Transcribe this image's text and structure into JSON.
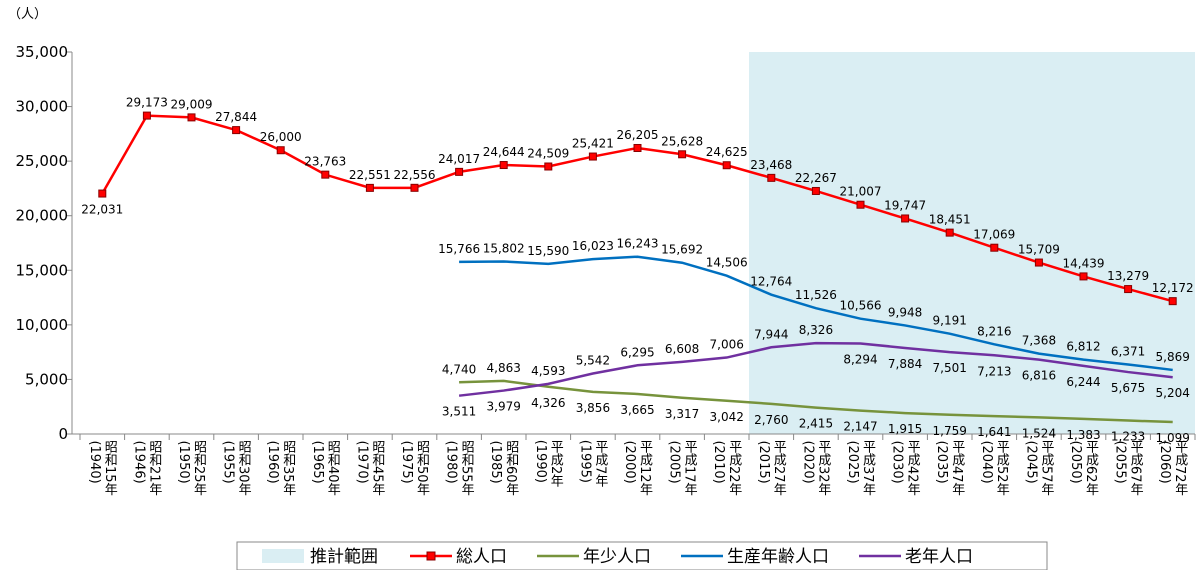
{
  "chart_data": {
    "type": "line",
    "y_unit": "（人）",
    "categories": [
      "昭和15年 (1940)",
      "昭和21年 (1946)",
      "昭和25年 (1950)",
      "昭和30年 (1955)",
      "昭和35年 (1960)",
      "昭和40年 (1965)",
      "昭和45年 (1970)",
      "昭和50年 (1975)",
      "昭和55年 (1980)",
      "昭和60年 (1985)",
      "平成2年 (1990)",
      "平成7年 (1995)",
      "平成12年 (2000)",
      "平成17年 (2005)",
      "平成22年 (2010)",
      "平成27年 (2015)",
      "平成32年 (2020)",
      "平成37年 (2025)",
      "平成42年 (2030)",
      "平成47年 (2035)",
      "平成52年 (2040)",
      "平成57年 (2045)",
      "平成62年 (2050)",
      "平成67年 (2055)",
      "平成72年 (2060)"
    ],
    "forecast": {
      "name": "推計範囲",
      "color": "#daeef3",
      "from": "平成27年 (2015)"
    },
    "series": [
      {
        "name": "総人口",
        "color": "#ff0000",
        "marker": "square",
        "values": [
          22031,
          29173,
          29009,
          27844,
          26000,
          23763,
          22551,
          22556,
          24017,
          24644,
          24509,
          25421,
          26205,
          25628,
          24625,
          23468,
          22267,
          21007,
          19747,
          18451,
          17069,
          15709,
          14439,
          13279,
          12172
        ],
        "value_labels": [
          "22,031",
          "29,173",
          "29,009",
          "27,844",
          "26,000",
          "23,763",
          "22,551",
          "22,556",
          "24,017",
          "24,644",
          "24,509",
          "25,421",
          "26,205",
          "25,628",
          "24,625",
          "23,468",
          "22,267",
          "21,007",
          "19,747",
          "18,451",
          "17,069",
          "15,709",
          "14,439",
          "13,279",
          "12,172"
        ]
      },
      {
        "name": "年少人口",
        "color": "#77933c",
        "values": [
          null,
          null,
          null,
          null,
          null,
          null,
          null,
          null,
          4740,
          4863,
          4326,
          3856,
          3665,
          3317,
          3042,
          2760,
          2415,
          2147,
          1915,
          1759,
          1641,
          1524,
          1383,
          1233,
          1099
        ],
        "value_labels": [
          null,
          null,
          null,
          null,
          null,
          null,
          null,
          null,
          "4,740",
          "4,863",
          "4,326",
          "3,856",
          "3,665",
          "3,317",
          "3,042",
          "2,760",
          "2,415",
          "2,147",
          "1,915",
          "1,759",
          "1,641",
          "1,524",
          "1,383",
          "1,233",
          "1,099"
        ]
      },
      {
        "name": "生産年齢人口",
        "color": "#0070c0",
        "values": [
          null,
          null,
          null,
          null,
          null,
          null,
          null,
          null,
          15766,
          15802,
          15590,
          16023,
          16243,
          15692,
          14506,
          12764,
          11526,
          10566,
          9948,
          9191,
          8216,
          7368,
          6812,
          6371,
          5869
        ],
        "value_labels": [
          null,
          null,
          null,
          null,
          null,
          null,
          null,
          null,
          "15,766",
          "15,802",
          "15,590",
          "16,023",
          "16,243",
          "15,692",
          "14,506",
          "12,764",
          "11,526",
          "10,566",
          "9,948",
          "9,191",
          "8,216",
          "7,368",
          "6,812",
          "6,371",
          "5,869"
        ]
      },
      {
        "name": "老年人口",
        "color": "#7030a0",
        "values": [
          null,
          null,
          null,
          null,
          null,
          null,
          null,
          null,
          3511,
          3979,
          4593,
          5542,
          6295,
          6608,
          7006,
          7944,
          8326,
          8294,
          7884,
          7501,
          7213,
          6816,
          6244,
          5675,
          5204
        ],
        "value_labels": [
          null,
          null,
          null,
          null,
          null,
          null,
          null,
          null,
          "3,511",
          "3,979",
          "4,593",
          "5,542",
          "6,295",
          "6,608",
          "7,006",
          "7,944",
          "8,326",
          "8,294",
          "7,884",
          "7,501",
          "7,213",
          "6,816",
          "6,244",
          "5,675",
          "5,204"
        ]
      }
    ],
    "ylim": [
      0,
      35000
    ],
    "yticks": [
      0,
      {
        "value": 5000,
        "label": "5,000"
      },
      {
        "value": 10000,
        "label": "10,000"
      },
      {
        "value": 15000,
        "label": "15,000"
      },
      {
        "value": 20000,
        "label": "20,000"
      },
      {
        "value": 25000,
        "label": "25,000"
      },
      {
        "value": 30000,
        "label": "30,000"
      },
      {
        "value": 35000,
        "label": "35,000"
      }
    ],
    "grid": false
  }
}
